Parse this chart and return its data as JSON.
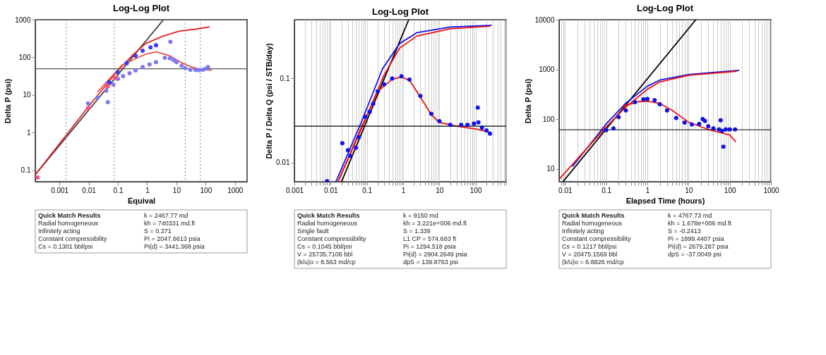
{
  "chart_data": [
    {
      "type": "line",
      "title": "Log-Log Plot",
      "xlabel": "Equival",
      "ylabel": "Delta P (psi)",
      "log": "xy",
      "grid": false,
      "xlim": [
        0.00015,
        2600
      ],
      "ylim": [
        0.05,
        1000
      ],
      "xticks": [
        0.001,
        0.01,
        0.1,
        1,
        10,
        100,
        1000
      ],
      "yticks": [
        0.1,
        1,
        10,
        100,
        1000
      ],
      "ref_lines": [
        {
          "axis": "x",
          "value": 0.0017,
          "color": "#999999",
          "line_style": "dotted"
        },
        {
          "axis": "x",
          "value": 0.075,
          "color": "#999999",
          "line_style": "dotted"
        },
        {
          "axis": "x",
          "value": 20,
          "color": "#999999",
          "line_style": "dotted"
        },
        {
          "axis": "x",
          "value": 65,
          "color": "#999999",
          "line_style": "dotted"
        },
        {
          "axis": "y",
          "value": 50,
          "color": "#555555",
          "line_style": "solid"
        }
      ],
      "series": [
        {
          "type": "line",
          "color": "#404040",
          "x": [
            0.00015,
            3.6
          ],
          "values": [
            0.077,
            1000
          ]
        },
        {
          "type": "line",
          "color": "#e82020",
          "x": [
            0.00015,
            0.01,
            0.1,
            0.3,
            0.9,
            3.4,
            12.6,
            47,
            137
          ],
          "values": [
            0.077,
            5,
            45,
            110,
            235,
            365,
            500,
            565,
            645
          ]
        },
        {
          "type": "line",
          "color": "#f05050",
          "x": [
            0.02,
            0.14,
            0.5,
            0.9,
            2,
            5.7,
            12.6,
            28,
            60,
            160
          ],
          "values": [
            12,
            63,
            100,
            122,
            140,
            112,
            78,
            58,
            49,
            46
          ]
        },
        {
          "type": "scatter",
          "color": "#3b3bf0",
          "x": [
            0.05,
            0.1,
            0.2,
            0.4,
            0.7,
            1.3,
            2
          ],
          "values": [
            22,
            40,
            70,
            110,
            150,
            185,
            210
          ]
        },
        {
          "type": "scatter",
          "color": "#7a7af5",
          "x": [
            0.0095,
            0.02,
            0.04,
            0.045,
            0.07,
            0.1,
            0.15,
            0.25,
            0.4,
            0.7,
            1.2,
            2,
            4,
            6,
            6.2,
            8,
            10,
            15,
            20,
            30,
            45,
            60,
            80,
            100,
            120
          ],
          "values": [
            6,
            8.5,
            13,
            6.5,
            19,
            27,
            32,
            38,
            45,
            55,
            65,
            75,
            98,
            95,
            260,
            85,
            75,
            60,
            52,
            47,
            46,
            46,
            47,
            50,
            55
          ]
        },
        {
          "type": "scatter",
          "color": "#ff4f8a",
          "x": [
            0.00018,
            0.0095,
            0.045,
            0.08
          ],
          "values": [
            0.065,
            4.5,
            17,
            28
          ]
        }
      ],
      "annotations": [
        "Quick Match Results",
        "Radial homogeneous",
        "Infinitely acting",
        "Constant compressibility",
        "Cs = 0.1301 bbl/psi",
        "k = 2467.77 md",
        "kh = 740331 md.ft",
        "S = 0.371",
        "Pi = 2047.6613 psia",
        "Pi(d) = 3441.368 psia"
      ]
    },
    {
      "type": "line",
      "title": "Log-Log Plot",
      "ylabel": "Delta P / Delta Q (psi / STB/day)",
      "log": "xy",
      "grid": "x",
      "xlim": [
        0.001,
        700
      ],
      "ylim": [
        0.0059,
        0.5
      ],
      "xticks": [
        0.001,
        {
          "value": 0.002,
          "label": null
        },
        {
          "value": 0.003,
          "label": null
        },
        {
          "value": 0.004,
          "label": null
        },
        {
          "value": 0.005,
          "label": null
        },
        {
          "value": 0.006,
          "label": null
        },
        {
          "value": 0.007,
          "label": null
        },
        {
          "value": 0.008,
          "label": null
        },
        {
          "value": 0.009,
          "label": null
        },
        0.01,
        {
          "value": 0.02,
          "label": null
        },
        {
          "value": 0.03,
          "label": null
        },
        {
          "value": 0.04,
          "label": null
        },
        {
          "value": 0.05,
          "label": null
        },
        {
          "value": 0.06,
          "label": null
        },
        {
          "value": 0.07,
          "label": null
        },
        {
          "value": 0.08,
          "label": null
        },
        {
          "value": 0.09,
          "label": null
        },
        0.1,
        {
          "value": 0.2,
          "label": null
        },
        {
          "value": 0.3,
          "label": null
        },
        {
          "value": 0.4,
          "label": null
        },
        {
          "value": 0.5,
          "label": null
        },
        {
          "value": 0.6,
          "label": null
        },
        {
          "value": 0.7,
          "label": null
        },
        {
          "value": 0.8,
          "label": null
        },
        {
          "value": 0.9,
          "label": null
        },
        1,
        {
          "value": 2,
          "label": null
        },
        {
          "value": 3,
          "label": null
        },
        {
          "value": 4,
          "label": null
        },
        {
          "value": 5,
          "label": null
        },
        {
          "value": 6,
          "label": null
        },
        {
          "value": 7,
          "label": null
        },
        {
          "value": 8,
          "label": null
        },
        {
          "value": 9,
          "label": null
        },
        10,
        {
          "value": 20,
          "label": null
        },
        {
          "value": 30,
          "label": null
        },
        {
          "value": 40,
          "label": null
        },
        {
          "value": 50,
          "label": null
        },
        {
          "value": 60,
          "label": null
        },
        {
          "value": 70,
          "label": null
        },
        {
          "value": 80,
          "label": null
        },
        {
          "value": 90,
          "label": null
        },
        100,
        {
          "value": 200,
          "label": null
        },
        {
          "value": 300,
          "label": null
        },
        {
          "value": 400,
          "label": null
        },
        {
          "value": 500,
          "label": null
        },
        {
          "value": 600,
          "label": null
        },
        {
          "value": 700,
          "label": null
        }
      ],
      "yticks": [
        0.01,
        0.1
      ],
      "ref_lines": [
        {
          "axis": "y",
          "value": 0.027,
          "color": "#000000",
          "line_style": "solid"
        }
      ],
      "series": [
        {
          "type": "line",
          "color": "#000000",
          "x": [
            0.02,
            1.43
          ],
          "values": [
            0.0059,
            0.5
          ]
        },
        {
          "type": "line",
          "color": "#1010ee",
          "x": [
            0.014,
            0.07,
            0.27,
            0.8,
            2.4,
            20,
            280
          ],
          "values": [
            0.0059,
            0.03,
            0.13,
            0.26,
            0.35,
            0.41,
            0.43
          ]
        },
        {
          "type": "line",
          "color": "#ee1010",
          "x": [
            0.016,
            0.073,
            0.3,
            0.8,
            2.4,
            20,
            250
          ],
          "values": [
            0.0059,
            0.026,
            0.11,
            0.23,
            0.32,
            0.39,
            0.42
          ]
        },
        {
          "type": "line",
          "color": "#ee1010",
          "x": [
            0.016,
            0.07,
            0.2,
            0.5,
            0.9,
            1.5,
            3,
            6,
            10,
            30,
            100,
            250
          ],
          "values": [
            0.0059,
            0.026,
            0.07,
            0.098,
            0.104,
            0.095,
            0.06,
            0.037,
            0.03,
            0.027,
            0.025,
            0.023
          ]
        },
        {
          "type": "scatter",
          "color": "#1010ee",
          "x": [
            0.008,
            0.021,
            0.03,
            0.035,
            0.05,
            0.06,
            0.09,
            0.12,
            0.15,
            0.2,
            0.3,
            0.5,
            0.9,
            1.5,
            3,
            6,
            10,
            20,
            40,
            60,
            90,
            115,
            120,
            150,
            200,
            250
          ],
          "values": [
            0.006,
            0.017,
            0.014,
            0.012,
            0.015,
            0.02,
            0.035,
            0.04,
            0.05,
            0.07,
            0.085,
            0.1,
            0.106,
            0.097,
            0.062,
            0.038,
            0.031,
            0.028,
            0.028,
            0.028,
            0.029,
            0.045,
            0.03,
            0.026,
            0.024,
            0.022
          ]
        }
      ],
      "annotations": [
        "Quick Match Results",
        "Radial homogeneous",
        "Single fault",
        "Constant compressibility",
        "Cs = 0.1045 bbl/psi",
        "V = 25735.7106 bbl",
        "(k/u)o = 8.563 md/cp",
        "k = 9150 md",
        "kh = 3.221e+006 md.ft",
        "S = 1.339",
        "L1 CP = 574.683 ft",
        "Pi = 1294.518 psia",
        "Pi(d) = 2904.2649 psia",
        "dpS = 139.8763 psi"
      ]
    },
    {
      "type": "line",
      "title": "Log-Log Plot",
      "xlabel": "Elapsed Time (hours)",
      "ylabel": "Delta P (psi)",
      "log": "xy",
      "grid": "x",
      "xlim": [
        0.0072,
        1000
      ],
      "ylim": [
        5.5,
        10000
      ],
      "xticks": [
        {
          "value": 0.008,
          "label": null
        },
        {
          "value": 0.009,
          "label": null
        },
        0.01,
        {
          "value": 0.02,
          "label": null
        },
        {
          "value": 0.03,
          "label": null
        },
        {
          "value": 0.04,
          "label": null
        },
        {
          "value": 0.05,
          "label": null
        },
        {
          "value": 0.06,
          "label": null
        },
        {
          "value": 0.07,
          "label": null
        },
        {
          "value": 0.08,
          "label": null
        },
        {
          "value": 0.09,
          "label": null
        },
        0.1,
        {
          "value": 0.2,
          "label": null
        },
        {
          "value": 0.3,
          "label": null
        },
        {
          "value": 0.4,
          "label": null
        },
        {
          "value": 0.5,
          "label": null
        },
        {
          "value": 0.6,
          "label": null
        },
        {
          "value": 0.7,
          "label": null
        },
        {
          "value": 0.8,
          "label": null
        },
        {
          "value": 0.9,
          "label": null
        },
        1,
        {
          "value": 2,
          "label": null
        },
        {
          "value": 3,
          "label": null
        },
        {
          "value": 4,
          "label": null
        },
        {
          "value": 5,
          "label": null
        },
        {
          "value": 6,
          "label": null
        },
        {
          "value": 7,
          "label": null
        },
        {
          "value": 8,
          "label": null
        },
        {
          "value": 9,
          "label": null
        },
        10,
        {
          "value": 20,
          "label": null
        },
        {
          "value": 30,
          "label": null
        },
        {
          "value": 40,
          "label": null
        },
        {
          "value": 50,
          "label": null
        },
        {
          "value": 60,
          "label": null
        },
        {
          "value": 70,
          "label": null
        },
        {
          "value": 80,
          "label": null
        },
        {
          "value": 90,
          "label": null
        },
        100,
        {
          "value": 200,
          "label": null
        },
        {
          "value": 300,
          "label": null
        },
        {
          "value": 400,
          "label": null
        },
        {
          "value": 500,
          "label": null
        },
        {
          "value": 600,
          "label": null
        },
        {
          "value": 700,
          "label": null
        },
        {
          "value": 800,
          "label": null
        },
        {
          "value": 900,
          "label": null
        },
        1000
      ],
      "yticks": [
        10,
        100,
        1000,
        10000
      ],
      "ref_lines": [
        {
          "axis": "y",
          "value": 61,
          "color": "#000000",
          "line_style": "solid"
        }
      ],
      "series": [
        {
          "type": "line",
          "color": "#000000",
          "x": [
            0.0089,
            15
          ],
          "values": [
            5.5,
            10000
          ]
        },
        {
          "type": "line",
          "color": "#1111dd",
          "x": [
            0.015,
            0.1,
            0.3,
            1,
            2,
            10,
            170
          ],
          "values": [
            11,
            80,
            210,
            460,
            610,
            790,
            960
          ]
        },
        {
          "type": "line",
          "color": "#ee1111",
          "x": [
            0.0072,
            0.1,
            0.3,
            1,
            2,
            10,
            150
          ],
          "values": [
            6.2,
            70,
            175,
            400,
            560,
            760,
            920
          ]
        },
        {
          "type": "line",
          "color": "#ee1111",
          "x": [
            0.25,
            0.6,
            1,
            2,
            4,
            10,
            30,
            100,
            140
          ],
          "values": [
            180,
            225,
            230,
            207,
            150,
            87,
            62,
            48,
            35
          ]
        },
        {
          "type": "scatter",
          "color": "#1111dd",
          "x": [
            0.1,
            0.15,
            0.2,
            0.3,
            0.5,
            0.8,
            1,
            1.5,
            2,
            3,
            5,
            8,
            12,
            18,
            22,
            25,
            30,
            40,
            55,
            60,
            65,
            70,
            80,
            100,
            135
          ],
          "values": [
            60,
            65,
            110,
            150,
            220,
            250,
            255,
            240,
            200,
            150,
            105,
            85,
            78,
            80,
            100,
            92,
            72,
            65,
            62,
            95,
            58,
            28,
            62,
            62,
            62
          ]
        }
      ],
      "annotations": [
        "Quick Match Results",
        "Radial homogeneous",
        "Infinitely acting",
        "Constant compressibility",
        "Cs = 0.1217 bbl/psi",
        "V = 20475.1569 bbl",
        "(k/u)o = 6.8826 md/cp",
        "k = 4767.73 md",
        "kh = 1.678e+006 md.ft",
        "S = -0.2413",
        "Pi = 1899.4407 psia",
        "Pi(d) = 2679.287 psia",
        "dpS = -37.0049 psi"
      ]
    }
  ]
}
